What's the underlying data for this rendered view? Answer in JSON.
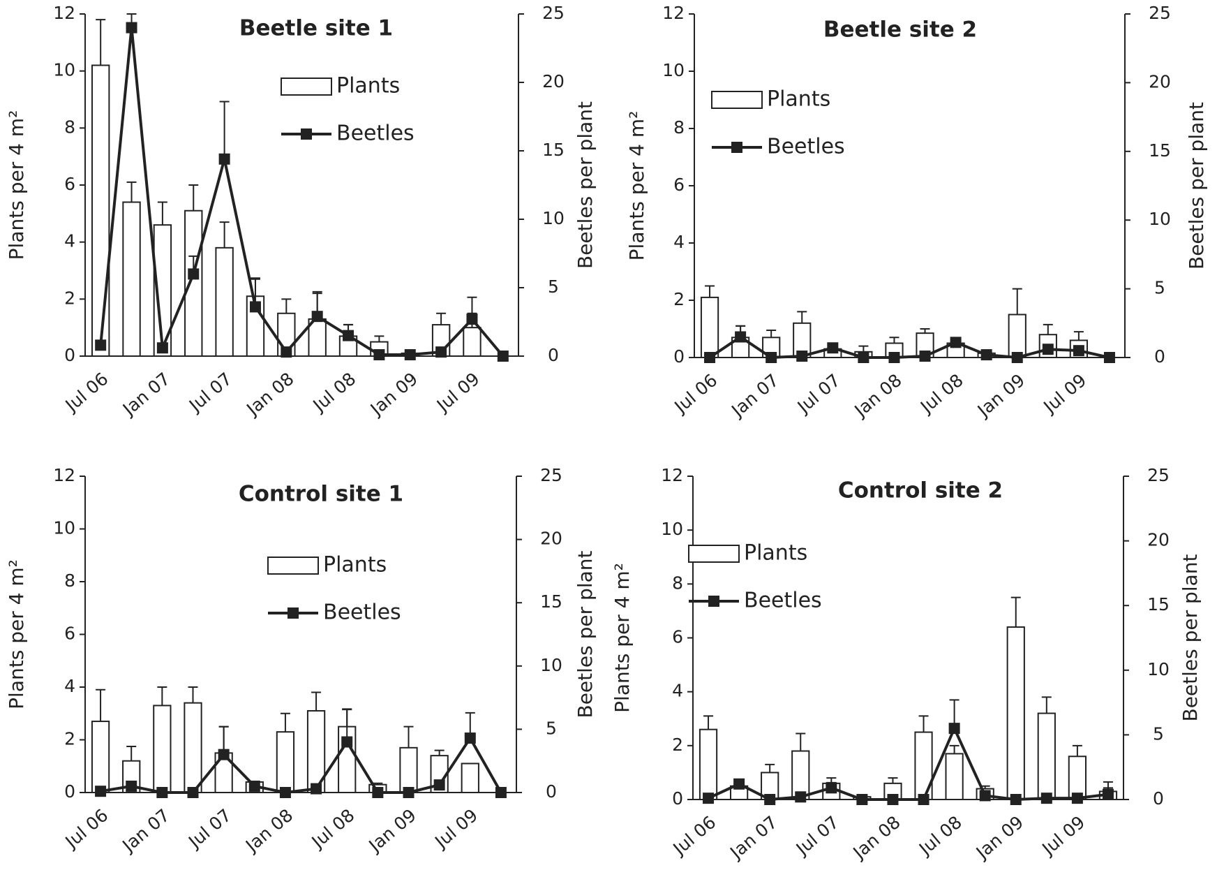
{
  "chart_data": [
    {
      "type": "bar",
      "title": "Beetle site 1",
      "categories": [
        "Jul 06",
        null,
        "Jan 07",
        null,
        "Jul 07",
        null,
        "Jan 08",
        null,
        "Jul 08",
        null,
        "Jan 09",
        null,
        "Jul 09",
        null
      ],
      "ylabel": "Plants per 4 m²",
      "y2label": "Beetles per plant",
      "ylim": [
        0,
        12
      ],
      "yticks": [
        0,
        2,
        4,
        6,
        8,
        10,
        12
      ],
      "y2lim": [
        0,
        25
      ],
      "y2ticks": [
        0,
        5,
        10,
        15,
        20,
        25
      ],
      "series": [
        {
          "name": "Plants",
          "type": "bar",
          "color": "#ffffff",
          "values": [
            10.2,
            5.4,
            4.6,
            5.1,
            3.8,
            2.1,
            1.5,
            1.3,
            0.7,
            0.5,
            0.1,
            1.1,
            1.0,
            0
          ],
          "errors": [
            1.6,
            0.7,
            0.8,
            0.9,
            0.9,
            0.6,
            0.5,
            0.9,
            0.4,
            0.2,
            0,
            0.4,
            0.5,
            0
          ]
        },
        {
          "name": "Beetles",
          "type": "line",
          "axis": "y2",
          "color": "#222222",
          "values": [
            0.8,
            24,
            0.6,
            6,
            14.4,
            3.6,
            0.3,
            2.9,
            1.5,
            0.1,
            0.1,
            0.3,
            2.7,
            0
          ],
          "errors": [
            0,
            1,
            0,
            1.3,
            4.2,
            2.1,
            0,
            1.8,
            0.8,
            0,
            0,
            0,
            1.6,
            0
          ]
        }
      ]
    },
    {
      "type": "bar",
      "title": "Beetle site 2",
      "categories": [
        "Jul 06",
        null,
        "Jan 07",
        null,
        "Jul 07",
        null,
        "Jan 08",
        null,
        "Jul 08",
        null,
        "Jan 09",
        null,
        "Jul 09",
        null
      ],
      "ylabel": "Plants per 4 m²",
      "y2label": "Beetles per plant",
      "ylim": [
        0,
        12
      ],
      "yticks": [
        0,
        2,
        4,
        6,
        8,
        10,
        12
      ],
      "y2lim": [
        0,
        25
      ],
      "y2ticks": [
        0,
        5,
        10,
        15,
        20,
        25
      ],
      "series": [
        {
          "name": "Plants",
          "type": "bar",
          "color": "#ffffff",
          "values": [
            2.1,
            0.7,
            0.7,
            1.2,
            0.3,
            0.2,
            0.5,
            0.85,
            0.5,
            0.15,
            1.5,
            0.8,
            0.6,
            0
          ],
          "errors": [
            0.4,
            0.4,
            0.25,
            0.4,
            0.1,
            0.2,
            0.2,
            0.15,
            0.1,
            0,
            0.9,
            0.35,
            0.3,
            0
          ]
        },
        {
          "name": "Beetles",
          "type": "line",
          "axis": "y2",
          "color": "#222222",
          "values": [
            0,
            1.5,
            0,
            0.1,
            0.7,
            0,
            0,
            0.1,
            1.1,
            0.2,
            0,
            0.6,
            0.5,
            0
          ],
          "errors": [
            0,
            0.8,
            0,
            0,
            0.2,
            0,
            0,
            0,
            0.2,
            0,
            0,
            0.3,
            0.3,
            0
          ]
        }
      ]
    },
    {
      "type": "bar",
      "title": "Control site 1",
      "categories": [
        "Jul 06",
        null,
        "Jan 07",
        null,
        "Jul 07",
        null,
        "Jan 08",
        null,
        "Jul 08",
        null,
        "Jan 09",
        null,
        "Jul 09",
        null
      ],
      "ylabel": "Plants per 4 m²",
      "y2label": "Beetles per plant",
      "ylim": [
        0,
        12
      ],
      "yticks": [
        0,
        2,
        4,
        6,
        8,
        10,
        12
      ],
      "y2lim": [
        0,
        25
      ],
      "y2ticks": [
        0,
        5,
        10,
        15,
        20,
        25
      ],
      "series": [
        {
          "name": "Plants",
          "type": "bar",
          "color": "#ffffff",
          "values": [
            2.7,
            1.2,
            3.3,
            3.4,
            1.5,
            0.4,
            2.3,
            3.1,
            2.5,
            0.3,
            1.7,
            1.4,
            1.1,
            0
          ],
          "errors": [
            1.2,
            0.55,
            0.7,
            0.6,
            1.0,
            0,
            0.7,
            0.7,
            0.65,
            0.05,
            0.8,
            0.2,
            0,
            0
          ]
        },
        {
          "name": "Beetles",
          "type": "line",
          "axis": "y2",
          "color": "#222222",
          "values": [
            0.1,
            0.5,
            0,
            0,
            3.0,
            0.5,
            0,
            0.3,
            4.0,
            0,
            0,
            0.6,
            4.3,
            0
          ],
          "errors": [
            0,
            0,
            0,
            0,
            2.2,
            0,
            0,
            0,
            2.6,
            0,
            0,
            0,
            2.0,
            0
          ]
        }
      ]
    },
    {
      "type": "bar",
      "title": "Control site 2",
      "categories": [
        "Jul 06",
        null,
        "Jan 07",
        null,
        "Jul 07",
        null,
        "Jan 08",
        null,
        "Jul 08",
        null,
        "Jan 09",
        null,
        "Jul 09",
        null
      ],
      "ylabel": "Plants per 4 m²",
      "y2label": "Beetles per plant",
      "ylim": [
        0,
        12
      ],
      "yticks": [
        0,
        2,
        4,
        6,
        8,
        10,
        12
      ],
      "y2lim": [
        0,
        25
      ],
      "y2ticks": [
        0,
        5,
        10,
        15,
        20,
        25
      ],
      "series": [
        {
          "name": "Plants",
          "type": "bar",
          "color": "#ffffff",
          "values": [
            2.6,
            0.5,
            1.0,
            1.8,
            0.6,
            0.1,
            0.6,
            2.5,
            1.7,
            0.4,
            6.4,
            3.2,
            1.6,
            0.3
          ],
          "errors": [
            0.5,
            0.1,
            0.3,
            0.65,
            0.2,
            0,
            0.2,
            0.6,
            0.3,
            0.1,
            1.1,
            0.6,
            0.4,
            0.35
          ]
        },
        {
          "name": "Beetles",
          "type": "line",
          "axis": "y2",
          "color": "#222222",
          "values": [
            0.1,
            1.2,
            0,
            0.2,
            0.9,
            0,
            0,
            0,
            5.5,
            0.3,
            0,
            0.1,
            0.1,
            0.4
          ],
          "errors": [
            0,
            0,
            0,
            0,
            0.4,
            0,
            0,
            0,
            2.2,
            0,
            0,
            0,
            0,
            0.5
          ]
        }
      ]
    }
  ]
}
